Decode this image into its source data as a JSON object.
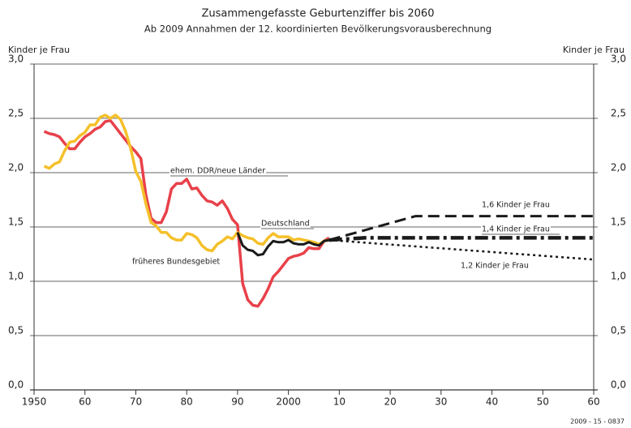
{
  "chart_data": {
    "type": "line",
    "title": "Zusammengefasste Geburtenziffer bis   2060",
    "subtitle": "Ab 2009 Annahmen der 12. koordinierten Bevölkerungsvorausberechnung",
    "y_label": "Kinder je Frau",
    "y2_label": "Kinder je Frau",
    "source": "2009 - 15 - 0837",
    "grid": true,
    "xlim": [
      1950,
      2060
    ],
    "xticks": [
      1950,
      {
        "value": 1960,
        "label": "60"
      },
      {
        "value": 1970,
        "label": "70"
      },
      {
        "value": 1980,
        "label": "80"
      },
      {
        "value": 1990,
        "label": "90"
      },
      2000,
      {
        "value": 2010,
        "label": "10"
      },
      {
        "value": 2020,
        "label": "20"
      },
      {
        "value": 2030,
        "label": "30"
      },
      {
        "value": 2040,
        "label": "40"
      },
      {
        "value": 2050,
        "label": "50"
      },
      {
        "value": 2060,
        "label": "60"
      }
    ],
    "ylim": [
      0,
      3
    ],
    "yticks": [
      {
        "value": 0,
        "label": "0,0"
      },
      {
        "value": 0.5,
        "label": "0,5"
      },
      {
        "value": 1,
        "label": "1,0"
      },
      {
        "value": 1.5,
        "label": "1,5"
      },
      {
        "value": 2,
        "label": "2,0"
      },
      {
        "value": 2.5,
        "label": "2,5"
      },
      {
        "value": 3,
        "label": "3,0"
      }
    ],
    "y2lim": [
      0,
      3
    ],
    "y2ticks": [
      {
        "value": 0,
        "label": "0,0"
      },
      {
        "value": 0.5,
        "label": "0,5"
      },
      {
        "value": 1,
        "label": "1,0"
      },
      {
        "value": 1.5,
        "label": "1,5"
      },
      {
        "value": 2,
        "label": "2,0"
      },
      {
        "value": 2.5,
        "label": "2,5"
      },
      {
        "value": 3,
        "label": "3,0"
      }
    ],
    "series": [
      {
        "name": "ehem. DDR/neue Länder",
        "color": "#e8414a",
        "style": "solid",
        "width": 3.5,
        "x": [
          1952,
          1953,
          1954,
          1955,
          1956,
          1957,
          1958,
          1959,
          1960,
          1961,
          1962,
          1963,
          1964,
          1965,
          1966,
          1967,
          1968,
          1969,
          1970,
          1971,
          1972,
          1973,
          1974,
          1975,
          1976,
          1977,
          1978,
          1979,
          1980,
          1981,
          1982,
          1983,
          1984,
          1985,
          1986,
          1987,
          1988,
          1989,
          1990,
          1991,
          1992,
          1993,
          1994,
          1995,
          1996,
          1997,
          1998,
          1999,
          2000,
          2001,
          2002,
          2003,
          2004,
          2005,
          2006,
          2007,
          2008
        ],
        "values": [
          2.38,
          2.36,
          2.35,
          2.33,
          2.27,
          2.22,
          2.22,
          2.28,
          2.33,
          2.36,
          2.4,
          2.42,
          2.47,
          2.48,
          2.42,
          2.36,
          2.3,
          2.24,
          2.19,
          2.13,
          1.79,
          1.58,
          1.54,
          1.54,
          1.64,
          1.85,
          1.9,
          1.9,
          1.94,
          1.85,
          1.86,
          1.79,
          1.74,
          1.73,
          1.7,
          1.74,
          1.67,
          1.57,
          1.52,
          0.98,
          0.83,
          0.78,
          0.77,
          0.84,
          0.93,
          1.04,
          1.09,
          1.15,
          1.21,
          1.23,
          1.24,
          1.26,
          1.31,
          1.3,
          1.3,
          1.37,
          1.4
        ]
      },
      {
        "name": "früheres Bundesgebiet",
        "color": "#f5c02a",
        "style": "solid",
        "width": 3.5,
        "x": [
          1952,
          1953,
          1954,
          1955,
          1956,
          1957,
          1958,
          1959,
          1960,
          1961,
          1962,
          1963,
          1964,
          1965,
          1966,
          1967,
          1968,
          1969,
          1970,
          1971,
          1972,
          1973,
          1974,
          1975,
          1976,
          1977,
          1978,
          1979,
          1980,
          1981,
          1982,
          1983,
          1984,
          1985,
          1986,
          1987,
          1988,
          1989,
          1990,
          1991,
          1992,
          1993,
          1994,
          1995,
          1996,
          1997,
          1998,
          1999,
          2000,
          2001,
          2002,
          2003,
          2004,
          2005,
          2006,
          2007,
          2008
        ],
        "values": [
          2.06,
          2.04,
          2.08,
          2.1,
          2.2,
          2.28,
          2.29,
          2.34,
          2.37,
          2.44,
          2.44,
          2.51,
          2.53,
          2.5,
          2.53,
          2.49,
          2.38,
          2.22,
          2.01,
          1.92,
          1.71,
          1.54,
          1.51,
          1.45,
          1.45,
          1.4,
          1.38,
          1.38,
          1.44,
          1.43,
          1.4,
          1.33,
          1.29,
          1.28,
          1.34,
          1.37,
          1.41,
          1.39,
          1.45,
          1.42,
          1.4,
          1.39,
          1.35,
          1.34,
          1.4,
          1.44,
          1.41,
          1.41,
          1.41,
          1.38,
          1.39,
          1.38,
          1.37,
          1.36,
          1.34,
          1.37,
          1.38
        ]
      },
      {
        "name": "Deutschland",
        "color": "#1a1a1a",
        "style": "solid",
        "width": 3,
        "x": [
          1990,
          1991,
          1992,
          1993,
          1994,
          1995,
          1996,
          1997,
          1998,
          1999,
          2000,
          2001,
          2002,
          2003,
          2004,
          2005,
          2006,
          2007,
          2008
        ],
        "values": [
          1.45,
          1.33,
          1.29,
          1.28,
          1.24,
          1.25,
          1.32,
          1.37,
          1.36,
          1.36,
          1.38,
          1.35,
          1.34,
          1.34,
          1.36,
          1.34,
          1.33,
          1.37,
          1.38
        ]
      },
      {
        "name": "1,6 Kinder je Frau",
        "color": "#1a1a1a",
        "style": "dashed",
        "width": 3,
        "x": [
          2008,
          2025,
          2060
        ],
        "values": [
          1.38,
          1.6,
          1.6
        ]
      },
      {
        "name": "1,4 Kinder je Frau",
        "color": "#1a1a1a",
        "style": "dashdot",
        "width": 4.5,
        "x": [
          2008,
          2015,
          2060
        ],
        "values": [
          1.38,
          1.4,
          1.4
        ]
      },
      {
        "name": "1,2 Kinder je Frau",
        "color": "#1a1a1a",
        "style": "dotted",
        "width": 2.5,
        "x": [
          2008,
          2060
        ],
        "values": [
          1.38,
          1.2
        ]
      }
    ]
  }
}
